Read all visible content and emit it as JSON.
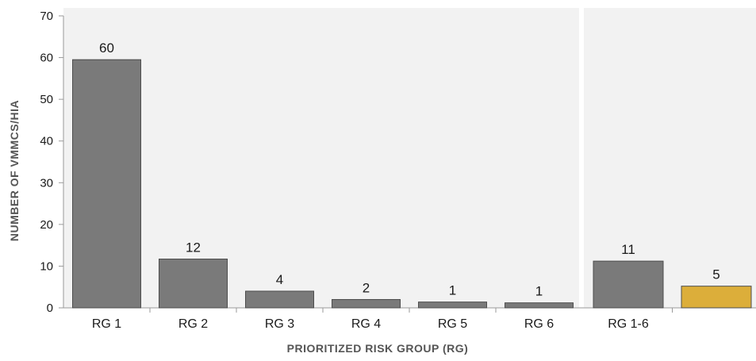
{
  "chart_data": {
    "type": "bar",
    "ylabel": "NUMBER OF VMMCS/HIA",
    "xlabel": "PRIORITIZED RISK GROUP (RG)",
    "ylim": [
      0,
      70
    ],
    "yticks": [
      0,
      10,
      20,
      30,
      40,
      50,
      60,
      70
    ],
    "grid": false,
    "panels": [
      {
        "categories": [
          "RG 1",
          "RG 2",
          "RG 3",
          "RG 4",
          "RG 5",
          "RG 6"
        ],
        "values": [
          59.5,
          11.7,
          4.0,
          2.0,
          1.4,
          1.2
        ],
        "labels": [
          "60",
          "12",
          "4",
          "2",
          "1",
          "1"
        ],
        "colors": [
          "#7a7a7a",
          "#7a7a7a",
          "#7a7a7a",
          "#7a7a7a",
          "#7a7a7a",
          "#7a7a7a"
        ]
      },
      {
        "categories": [
          "RG 1-6",
          ""
        ],
        "values": [
          11.2,
          5.2
        ],
        "labels": [
          "11",
          "5"
        ],
        "colors": [
          "#7a7a7a",
          "#dcae3a"
        ]
      }
    ]
  }
}
